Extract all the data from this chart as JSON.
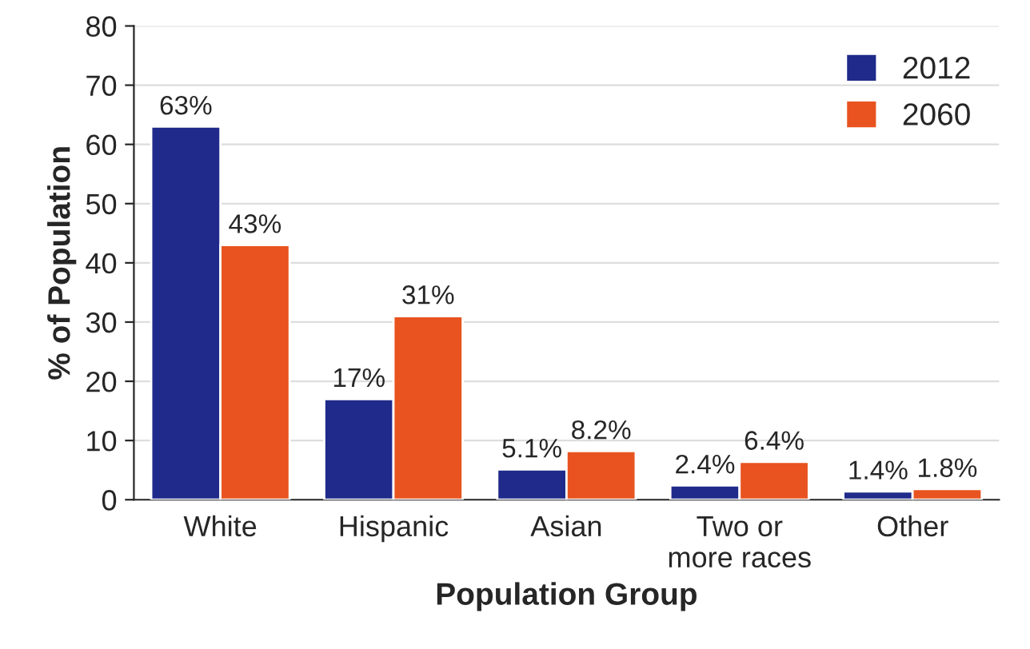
{
  "chart_data": {
    "type": "bar",
    "xlabel": "Population Group",
    "ylabel": "% of Population",
    "categories": [
      "White",
      "Hispanic",
      "Asian",
      "Two or\nmore races",
      "Other"
    ],
    "series": [
      {
        "name": "2012",
        "color": "#1f2a8a",
        "values": [
          63,
          17,
          5.1,
          2.4,
          1.4
        ],
        "value_labels": [
          "63%",
          "17%",
          "5.1%",
          "2.4%",
          "1.4%"
        ]
      },
      {
        "name": "2060",
        "color": "#e8531f",
        "values": [
          43,
          31,
          8.2,
          6.4,
          1.8
        ],
        "value_labels": [
          "43%",
          "31%",
          "8.2%",
          "6.4%",
          "1.8%"
        ]
      }
    ],
    "ylim": [
      0,
      80
    ],
    "yticks": [
      0,
      10,
      20,
      30,
      40,
      50,
      60,
      70,
      80
    ],
    "grid": "y",
    "legend": "top right"
  }
}
